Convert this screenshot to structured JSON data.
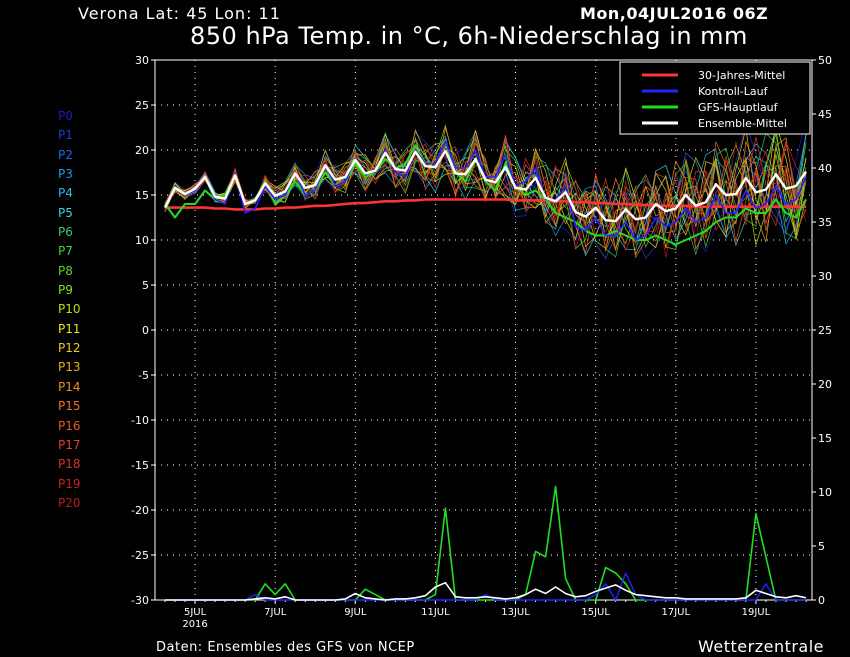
{
  "header": {
    "location": "Verona   Lat: 45 Lon: 11",
    "run": "Mon,04JUL2016 06Z",
    "title": "850 hPa Temp. in °C, 6h-Niederschlag in mm"
  },
  "footer": {
    "source": "Daten: Ensembles des GFS von NCEP",
    "brand": "Wetterzentrale"
  },
  "members": [
    {
      "label": "P0",
      "color": "#1a1acc"
    },
    {
      "label": "P1",
      "color": "#1e3ad8"
    },
    {
      "label": "P2",
      "color": "#1f6ae0"
    },
    {
      "label": "P3",
      "color": "#2296e6"
    },
    {
      "label": "P4",
      "color": "#28b8ea"
    },
    {
      "label": "P5",
      "color": "#3cd2d2"
    },
    {
      "label": "P6",
      "color": "#38c878"
    },
    {
      "label": "P7",
      "color": "#3ad244"
    },
    {
      "label": "P8",
      "color": "#56d62a"
    },
    {
      "label": "P9",
      "color": "#8adc22"
    },
    {
      "label": "P10",
      "color": "#b8e01e"
    },
    {
      "label": "P11",
      "color": "#e8e81a"
    },
    {
      "label": "P12",
      "color": "#f0c81a"
    },
    {
      "label": "P13",
      "color": "#f2aa1a"
    },
    {
      "label": "P14",
      "color": "#f28c1c"
    },
    {
      "label": "P15",
      "color": "#ee7220"
    },
    {
      "label": "P16",
      "color": "#e85a22"
    },
    {
      "label": "P17",
      "color": "#e04224"
    },
    {
      "label": "P18",
      "color": "#d63024"
    },
    {
      "label": "P19",
      "color": "#c82222"
    },
    {
      "label": "P20",
      "color": "#b81c1c"
    }
  ],
  "chart_data": {
    "type": "line",
    "x_tick_labels": [
      "5JUL",
      "7JUL",
      "9JUL",
      "11JUL",
      "13JUL",
      "15JUL",
      "17JUL",
      "19JUL"
    ],
    "x_year_label": "2016",
    "y_left": {
      "label": "850 hPa Temp. in °C",
      "range": [
        -30,
        30
      ],
      "ticks": [
        30,
        25,
        20,
        15,
        10,
        5,
        0,
        -5,
        -10,
        -15,
        -20,
        -25,
        -30
      ]
    },
    "y_right": {
      "label": "6h-Niederschlag in mm",
      "range": [
        0,
        50
      ],
      "ticks": [
        50,
        45,
        40,
        35,
        30,
        25,
        20,
        15,
        10,
        5,
        0
      ]
    },
    "grid": true,
    "legend_position": "top-right",
    "legend": [
      {
        "name": "30-Jahres-Mittel",
        "color": "#ff3333"
      },
      {
        "name": "Kontroll-Lauf",
        "color": "#2222ff"
      },
      {
        "name": "GFS-Hauptlauf",
        "color": "#22dd22"
      },
      {
        "name": "Ensemble-Mittel",
        "color": "#ffffff"
      }
    ],
    "time_days": [
      4.25,
      4.5,
      4.75,
      5,
      5.25,
      5.5,
      5.75,
      6,
      6.25,
      6.5,
      6.75,
      7,
      7.25,
      7.5,
      7.75,
      8,
      8.25,
      8.5,
      8.75,
      9,
      9.25,
      9.5,
      9.75,
      10,
      10.25,
      10.5,
      10.75,
      11,
      11.25,
      11.5,
      11.75,
      12,
      12.25,
      12.5,
      12.75,
      13,
      13.25,
      13.5,
      13.75,
      14,
      14.25,
      14.5,
      14.75,
      15,
      15.25,
      15.5,
      15.75,
      16,
      16.25,
      16.5,
      16.75,
      17,
      17.25,
      17.5,
      17.75,
      18,
      18.25,
      18.5,
      18.75,
      19,
      19.25,
      19.5,
      19.75,
      20,
      20.25
    ],
    "series": [
      {
        "name": "30-Jahres-Mittel",
        "axis": "left",
        "values": [
          13.6,
          13.6,
          13.6,
          13.6,
          13.6,
          13.5,
          13.5,
          13.4,
          13.4,
          13.4,
          13.5,
          13.5,
          13.6,
          13.6,
          13.7,
          13.8,
          13.8,
          13.9,
          14,
          14.1,
          14.1,
          14.2,
          14.3,
          14.3,
          14.4,
          14.4,
          14.5,
          14.5,
          14.5,
          14.5,
          14.5,
          14.5,
          14.5,
          14.5,
          14.5,
          14.4,
          14.4,
          14.4,
          14.4,
          14.3,
          14.3,
          14.2,
          14.2,
          14.1,
          14.1,
          14,
          14,
          13.9,
          13.9,
          13.8,
          13.8,
          13.8,
          13.8,
          13.7,
          13.7,
          13.7,
          13.7,
          13.7,
          13.7,
          13.7,
          13.7,
          13.7,
          13.7,
          13.7,
          13.7
        ]
      },
      {
        "name": "Kontroll-Lauf",
        "axis": "left",
        "values": [
          13.5,
          16,
          15,
          15.5,
          17,
          14.5,
          14,
          17.5,
          13,
          13.5,
          16,
          14.5,
          15,
          17.5,
          15,
          15.5,
          18.5,
          16,
          16.5,
          19,
          17.5,
          17.5,
          20,
          17.5,
          17,
          20,
          18.5,
          18.5,
          21,
          18,
          18,
          20,
          17,
          17,
          19.5,
          16,
          16.5,
          18,
          14.5,
          14.5,
          16,
          11.5,
          11,
          12.5,
          10.5,
          10.5,
          12,
          10,
          10.5,
          12.5,
          11.5,
          12,
          13.5,
          12,
          12.5,
          15,
          13,
          13,
          15.5,
          13.5,
          14,
          16,
          14,
          14.5,
          17
        ]
      },
      {
        "name": "GFS-Hauptlauf",
        "axis": "left",
        "values": [
          14,
          12.5,
          14,
          14,
          15.5,
          14.5,
          15,
          17,
          14,
          14.5,
          16.5,
          14,
          15,
          16.5,
          15,
          15.5,
          17.5,
          16,
          16.5,
          18.5,
          17,
          17.5,
          19,
          18,
          18.5,
          20.5,
          18.5,
          18.5,
          21,
          17.5,
          16.5,
          19,
          16.5,
          15.5,
          18.5,
          16,
          15,
          15.5,
          14.5,
          13,
          12.5,
          12,
          11,
          10.5,
          10.5,
          11,
          10.5,
          10,
          10,
          10.5,
          10,
          9.5,
          10,
          10.5,
          11,
          12,
          12.5,
          12.5,
          13.5,
          13,
          13,
          14.5,
          13,
          12.5,
          14.5
        ]
      },
      {
        "name": "Ensemble-Mittel",
        "axis": "left",
        "values": [
          13.6,
          15.8,
          15.1,
          15.7,
          17,
          14.8,
          14.6,
          17.2,
          14,
          14.4,
          16.3,
          14.9,
          15.4,
          17.4,
          15.8,
          16.1,
          18.3,
          16.7,
          17,
          18.9,
          17.4,
          17.7,
          19.7,
          17.9,
          17.7,
          19.8,
          18.2,
          18.1,
          19.9,
          17.4,
          17.3,
          19,
          16.7,
          16.4,
          18.1,
          15.8,
          15.6,
          16.9,
          14.7,
          14.3,
          15.3,
          13.1,
          12.6,
          13.6,
          12.2,
          12.1,
          13.4,
          12.3,
          12.5,
          14,
          13.2,
          13.5,
          15,
          13.8,
          14.2,
          16.2,
          15,
          15.1,
          16.9,
          15.3,
          15.6,
          17.3,
          15.7,
          16,
          17.6
        ]
      },
      {
        "name": "Kontroll-Lauf Niederschlag",
        "axis": "right",
        "values": [
          0,
          0,
          0,
          0,
          0,
          0,
          0,
          0,
          0,
          0.5,
          0,
          0,
          0,
          0,
          0,
          0,
          0,
          0,
          0,
          0,
          0,
          0,
          0,
          0,
          0,
          0,
          0,
          0,
          0,
          0,
          0,
          0,
          0.5,
          0,
          0,
          0,
          0,
          0,
          0,
          0,
          0,
          0,
          0,
          0.5,
          1.5,
          0,
          2.5,
          0.5,
          0,
          0,
          0,
          0,
          0,
          0,
          0,
          0,
          0,
          0,
          0,
          0,
          1.5,
          0,
          0,
          0,
          0
        ]
      },
      {
        "name": "GFS-Hauptlauf Niederschlag",
        "axis": "right",
        "values": [
          0,
          0,
          0,
          0,
          0,
          0,
          0,
          0,
          0,
          0,
          1.5,
          0.5,
          1.5,
          0,
          0,
          0,
          0,
          0,
          0,
          0,
          1,
          0.5,
          0,
          0,
          0,
          0,
          0,
          0.5,
          8.5,
          0,
          0,
          0,
          0,
          0,
          0,
          0,
          0.5,
          4.5,
          4,
          10.5,
          2,
          0,
          0,
          0,
          3,
          2.5,
          1.5,
          0,
          0,
          0,
          0,
          0,
          0,
          0,
          0,
          0,
          0,
          0,
          0,
          8,
          4,
          0,
          0,
          0,
          0
        ]
      },
      {
        "name": "Ensemble-Mittel Niederschlag",
        "axis": "right",
        "values": [
          0,
          0,
          0,
          0,
          0,
          0,
          0,
          0,
          0,
          0.1,
          0.2,
          0.1,
          0.3,
          0,
          0,
          0,
          0,
          0,
          0.1,
          0.6,
          0.2,
          0.1,
          0,
          0.1,
          0.1,
          0.2,
          0.4,
          1.2,
          1.6,
          0.3,
          0.2,
          0.2,
          0.3,
          0.2,
          0.1,
          0.2,
          0.5,
          1,
          0.6,
          1.2,
          0.6,
          0.3,
          0.4,
          0.8,
          1.1,
          1.4,
          0.9,
          0.5,
          0.4,
          0.3,
          0.2,
          0.2,
          0.1,
          0.1,
          0.1,
          0.1,
          0.1,
          0.1,
          0.2,
          0.9,
          0.6,
          0.3,
          0.2,
          0.4,
          0.2
        ]
      }
    ]
  }
}
